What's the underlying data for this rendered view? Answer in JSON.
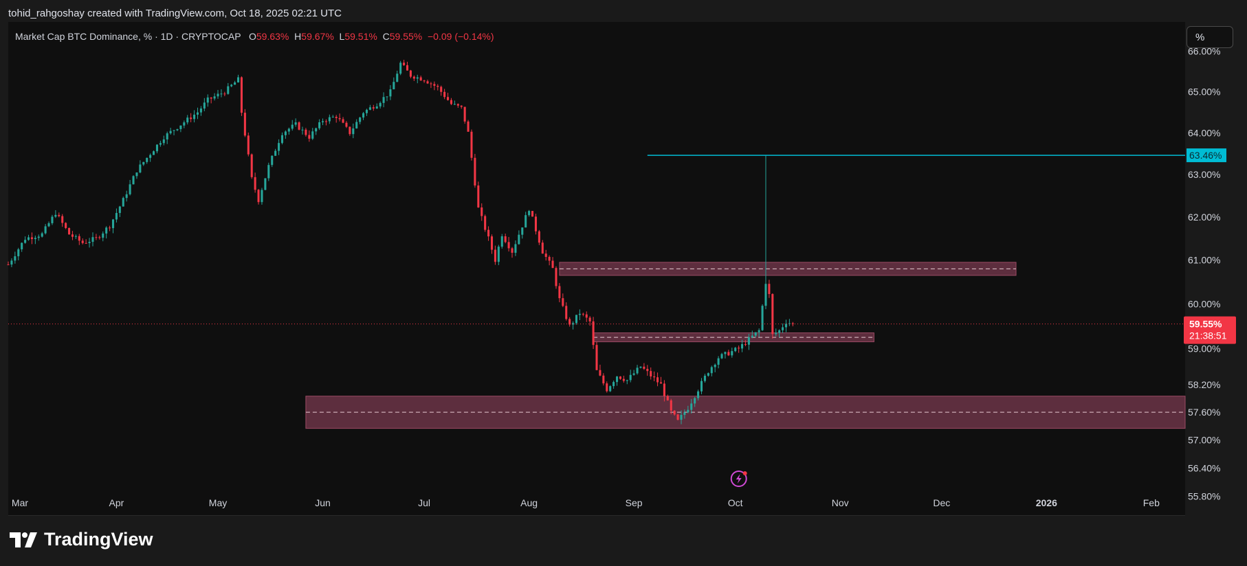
{
  "header": {
    "attribution": "tohid_rahgoshay created with TradingView.com, Oct 18, 2025 02:21 UTC"
  },
  "legend": {
    "symbol": "Market Cap BTC Dominance, % · 1D · CRYPTOCAP",
    "open_label": "O",
    "open": "59.63%",
    "high_label": "H",
    "high": "59.67%",
    "low_label": "L",
    "low": "59.51%",
    "close_label": "C",
    "close": "59.55%",
    "change": "−0.09 (−0.14%)"
  },
  "scale_button": {
    "label": "%"
  },
  "brand": {
    "name": "TradingView"
  },
  "colors": {
    "up": "#26a69a",
    "down": "#f23645",
    "zone_fill": "#6b3447",
    "zone_border": "#9c4a64",
    "hline": "#00bcd4",
    "background": "#0f0f0f"
  },
  "chart_data": {
    "type": "candlestick",
    "title": "Market Cap BTC Dominance, % · 1D · CRYPTOCAP",
    "x_tick_labels": [
      "Mar",
      "Apr",
      "May",
      "Jun",
      "Jul",
      "Aug",
      "Sep",
      "Oct",
      "Nov",
      "Dec",
      "2026",
      "Feb"
    ],
    "x_ticks": [
      "2025-03-01",
      "2025-04-01",
      "2025-05-01",
      "2025-06-01",
      "2025-07-01",
      "2025-08-01",
      "2025-09-01",
      "2025-10-01",
      "2025-11-01",
      "2025-12-01",
      "2026-01-01",
      "2026-02-01"
    ],
    "x_range": [
      "2025-02-28",
      "2026-02-11"
    ],
    "y_tick_labels": [
      "55.80%",
      "56.40%",
      "57.00%",
      "57.60%",
      "58.20%",
      "59.00%",
      "60.00%",
      "61.00%",
      "62.00%",
      "63.00%",
      "64.00%",
      "65.00%",
      "66.00%"
    ],
    "y_ticks": [
      55.8,
      56.4,
      57.0,
      57.6,
      58.2,
      59.0,
      60.0,
      61.0,
      62.0,
      63.0,
      64.0,
      65.0,
      66.0
    ],
    "y_scale": "log",
    "y_range": [
      55.55,
      66.25
    ],
    "last_price": {
      "value": 59.55,
      "label": "59.55%",
      "countdown": "21:38:51"
    },
    "hline": {
      "value": 63.46,
      "label": "63.46%",
      "start": "2025-09-05"
    },
    "zones": [
      {
        "name": "upper-zone",
        "top": 60.95,
        "bottom": 60.65,
        "mid": 60.8,
        "start": "2025-08-10",
        "end": "2025-12-23"
      },
      {
        "name": "middle-zone",
        "top": 59.35,
        "bottom": 59.15,
        "mid": 59.25,
        "start": "2025-08-20",
        "end": "2025-11-11"
      },
      {
        "name": "lower-zone",
        "top": 57.95,
        "bottom": 57.25,
        "mid": 57.6,
        "start": "2025-05-27",
        "end": "2026-02-11"
      }
    ],
    "daily_close": [
      [
        "2025-02-28",
        60.9
      ],
      [
        "2025-03-05",
        61.5
      ],
      [
        "2025-03-10",
        61.6
      ],
      [
        "2025-03-14",
        62.1
      ],
      [
        "2025-03-18",
        61.6
      ],
      [
        "2025-03-22",
        61.4
      ],
      [
        "2025-03-26",
        61.5
      ],
      [
        "2025-03-30",
        61.8
      ],
      [
        "2025-04-03",
        62.4
      ],
      [
        "2025-04-07",
        63.1
      ],
      [
        "2025-04-11",
        63.5
      ],
      [
        "2025-04-15",
        63.9
      ],
      [
        "2025-04-20",
        64.2
      ],
      [
        "2025-04-25",
        64.5
      ],
      [
        "2025-04-28",
        64.8
      ],
      [
        "2025-05-03",
        65.0
      ],
      [
        "2025-05-07",
        65.3
      ],
      [
        "2025-05-08",
        64.5
      ],
      [
        "2025-05-11",
        62.9
      ],
      [
        "2025-05-13",
        62.4
      ],
      [
        "2025-05-16",
        63.2
      ],
      [
        "2025-05-20",
        64.0
      ],
      [
        "2025-05-24",
        64.2
      ],
      [
        "2025-05-28",
        63.9
      ],
      [
        "2025-06-01",
        64.3
      ],
      [
        "2025-06-05",
        64.4
      ],
      [
        "2025-06-09",
        64.0
      ],
      [
        "2025-06-13",
        64.5
      ],
      [
        "2025-06-17",
        64.7
      ],
      [
        "2025-06-21",
        65.0
      ],
      [
        "2025-06-24",
        65.7
      ],
      [
        "2025-06-27",
        65.4
      ],
      [
        "2025-07-01",
        65.3
      ],
      [
        "2025-07-05",
        65.1
      ],
      [
        "2025-07-09",
        64.7
      ],
      [
        "2025-07-12",
        64.6
      ],
      [
        "2025-07-14",
        64.0
      ],
      [
        "2025-07-17",
        62.2
      ],
      [
        "2025-07-20",
        61.5
      ],
      [
        "2025-07-22",
        61.0
      ],
      [
        "2025-07-24",
        61.6
      ],
      [
        "2025-07-27",
        61.2
      ],
      [
        "2025-07-30",
        61.8
      ],
      [
        "2025-08-01",
        62.2
      ],
      [
        "2025-08-03",
        61.7
      ],
      [
        "2025-08-05",
        61.2
      ],
      [
        "2025-08-08",
        60.8
      ],
      [
        "2025-08-10",
        60.1
      ],
      [
        "2025-08-13",
        59.5
      ],
      [
        "2025-08-16",
        59.8
      ],
      [
        "2025-08-19",
        59.6
      ],
      [
        "2025-08-21",
        58.5
      ],
      [
        "2025-08-24",
        58.1
      ],
      [
        "2025-08-27",
        58.4
      ],
      [
        "2025-08-30",
        58.3
      ],
      [
        "2025-09-03",
        58.6
      ],
      [
        "2025-09-06",
        58.4
      ],
      [
        "2025-09-09",
        58.2
      ],
      [
        "2025-09-12",
        57.6
      ],
      [
        "2025-09-14",
        57.4
      ],
      [
        "2025-09-17",
        57.7
      ],
      [
        "2025-09-20",
        58.1
      ],
      [
        "2025-09-23",
        58.5
      ],
      [
        "2025-09-26",
        58.8
      ],
      [
        "2025-09-29",
        58.9
      ],
      [
        "2025-10-02",
        59.0
      ],
      [
        "2025-10-05",
        59.2
      ],
      [
        "2025-10-08",
        59.4
      ],
      [
        "2025-10-10",
        60.5
      ],
      [
        "2025-10-11",
        60.2
      ],
      [
        "2025-10-12",
        59.3
      ],
      [
        "2025-10-14",
        59.4
      ],
      [
        "2025-10-16",
        59.6
      ],
      [
        "2025-10-18",
        59.55
      ]
    ]
  }
}
